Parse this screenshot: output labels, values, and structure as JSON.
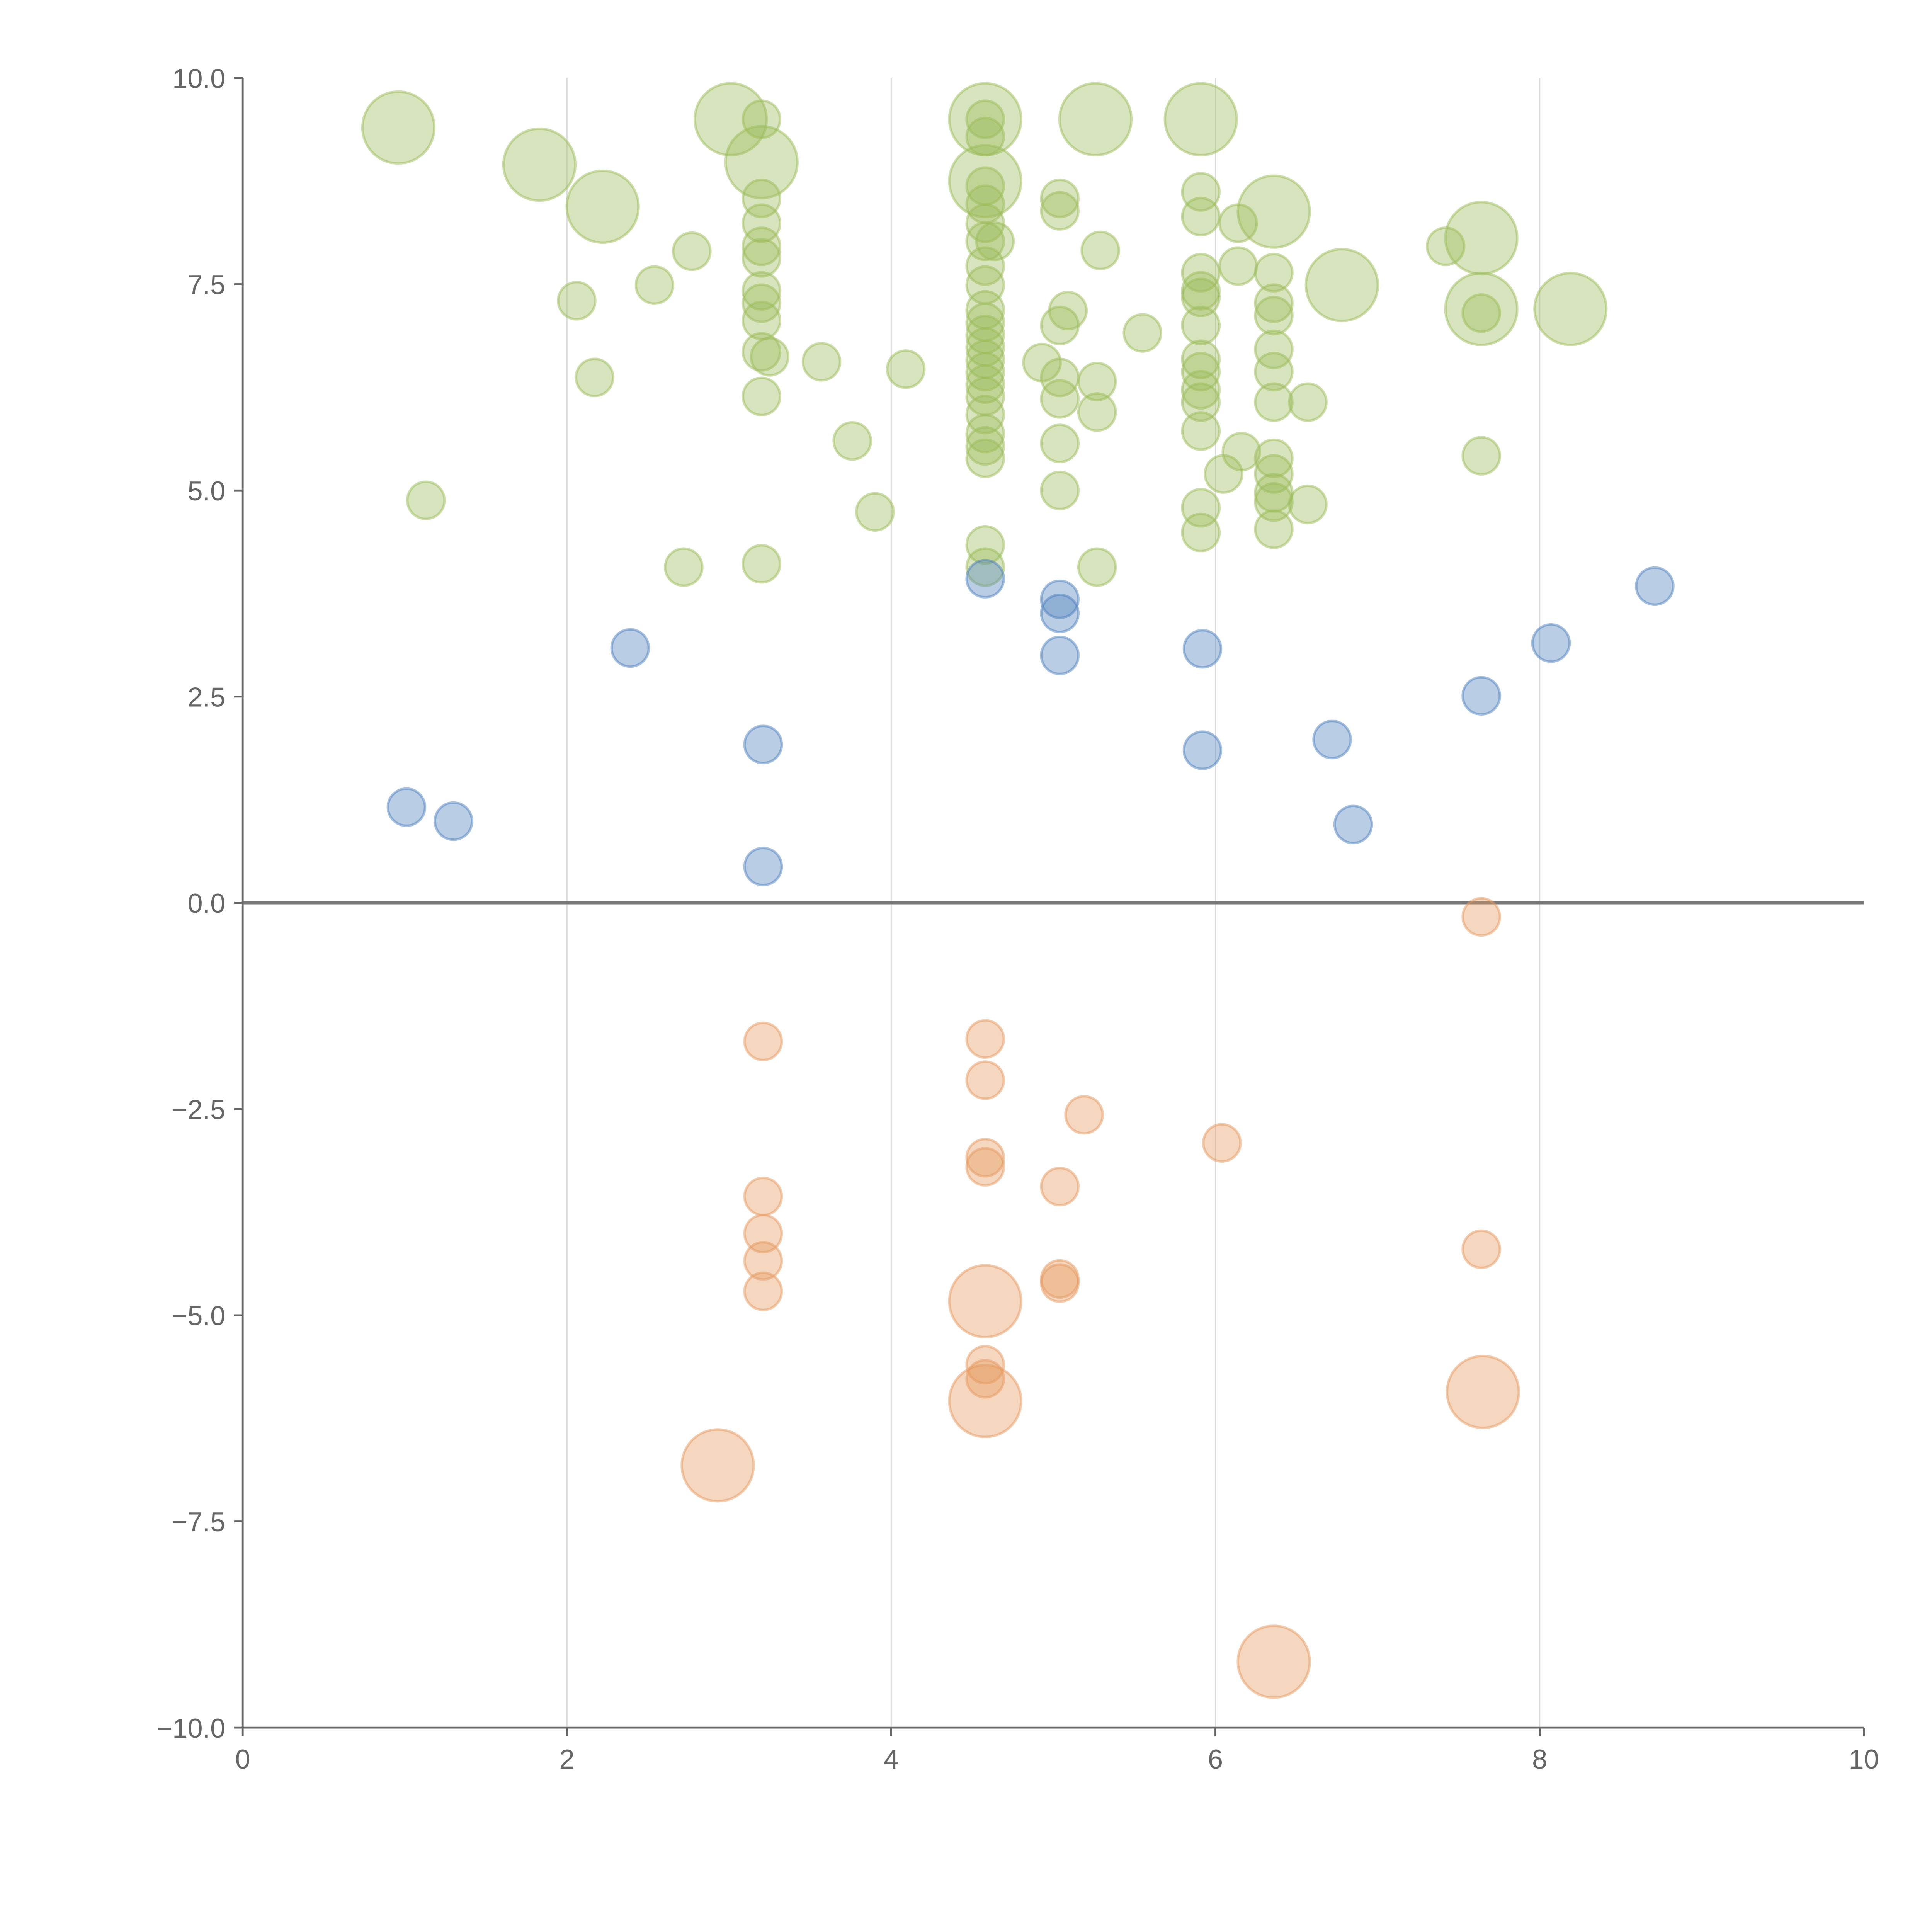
{
  "chart_data": {
    "type": "scatter",
    "title": "",
    "xlabel": "",
    "ylabel": "",
    "xlim": [
      0,
      10
    ],
    "ylim": [
      -10,
      10
    ],
    "grid": "vertical",
    "x_ticks": [
      "0",
      "2",
      "4",
      "6",
      "8",
      "10"
    ],
    "y_ticks": [
      "−10.0",
      "−7.5",
      "−5.0",
      "−2.5",
      "0.0",
      "2.5",
      "5.0",
      "7.5",
      "10.0"
    ],
    "point_format": "[x, y, size]",
    "series": [
      {
        "name": "green",
        "color": "#9bbb59",
        "points": [
          [
            0.96,
            9.4,
            4
          ],
          [
            1.83,
            8.95,
            4
          ],
          [
            2.22,
            8.44,
            4
          ],
          [
            3.01,
            9.5,
            4
          ],
          [
            3.2,
            8.98,
            4
          ],
          [
            4.58,
            9.5,
            4
          ],
          [
            4.58,
            8.75,
            4
          ],
          [
            5.26,
            9.5,
            4
          ],
          [
            5.91,
            9.5,
            4
          ],
          [
            6.36,
            8.38,
            4
          ],
          [
            6.78,
            7.49,
            4
          ],
          [
            7.64,
            8.06,
            4
          ],
          [
            7.64,
            7.2,
            4
          ],
          [
            8.19,
            7.2,
            4
          ],
          [
            3.2,
            9.5,
            1
          ],
          [
            3.2,
            8.54,
            1
          ],
          [
            3.2,
            8.24,
            1
          ],
          [
            3.2,
            7.96,
            1
          ],
          [
            3.2,
            7.82,
            1
          ],
          [
            3.2,
            7.42,
            1
          ],
          [
            3.2,
            7.27,
            1
          ],
          [
            3.2,
            7.06,
            1
          ],
          [
            3.2,
            6.68,
            1
          ],
          [
            3.2,
            6.14,
            1
          ],
          [
            3.2,
            4.11,
            1
          ],
          [
            3.25,
            6.62,
            1
          ],
          [
            1.13,
            4.88,
            1
          ],
          [
            2.06,
            7.3,
            1
          ],
          [
            2.17,
            6.37,
            1
          ],
          [
            2.54,
            7.49,
            1
          ],
          [
            2.77,
            7.9,
            1
          ],
          [
            2.72,
            4.07,
            1
          ],
          [
            3.57,
            6.56,
            1
          ],
          [
            3.76,
            5.6,
            1
          ],
          [
            3.9,
            4.74,
            1
          ],
          [
            4.09,
            6.47,
            1
          ],
          [
            4.58,
            9.5,
            1
          ],
          [
            4.58,
            9.29,
            1
          ],
          [
            4.58,
            8.69,
            1
          ],
          [
            4.58,
            8.47,
            1
          ],
          [
            4.58,
            8.24,
            1
          ],
          [
            4.58,
            8.02,
            1
          ],
          [
            4.58,
            7.72,
            1
          ],
          [
            4.58,
            7.49,
            1
          ],
          [
            4.58,
            7.19,
            1
          ],
          [
            4.58,
            7.04,
            1
          ],
          [
            4.58,
            6.89,
            1
          ],
          [
            4.58,
            6.74,
            1
          ],
          [
            4.58,
            6.59,
            1
          ],
          [
            4.58,
            6.44,
            1
          ],
          [
            4.58,
            6.29,
            1
          ],
          [
            4.58,
            6.14,
            1
          ],
          [
            4.58,
            5.92,
            1
          ],
          [
            4.58,
            5.69,
            1
          ],
          [
            4.58,
            5.54,
            1
          ],
          [
            4.58,
            5.39,
            1
          ],
          [
            4.58,
            4.34,
            1
          ],
          [
            4.58,
            4.07,
            1
          ],
          [
            4.64,
            8.02,
            1
          ],
          [
            5.04,
            8.54,
            1
          ],
          [
            5.04,
            8.39,
            1
          ],
          [
            5.29,
            7.91,
            1
          ],
          [
            5.09,
            7.18,
            1
          ],
          [
            5.04,
            7.0,
            1
          ],
          [
            4.93,
            6.55,
            1
          ],
          [
            5.04,
            6.37,
            1
          ],
          [
            5.04,
            6.11,
            1
          ],
          [
            5.27,
            6.32,
            1
          ],
          [
            5.27,
            5.95,
            1
          ],
          [
            5.04,
            5.57,
            1
          ],
          [
            5.04,
            5.0,
            1
          ],
          [
            5.27,
            4.07,
            1
          ],
          [
            5.55,
            6.91,
            1
          ],
          [
            5.91,
            8.62,
            1
          ],
          [
            5.91,
            8.32,
            1
          ],
          [
            5.91,
            7.64,
            1
          ],
          [
            5.91,
            7.42,
            1
          ],
          [
            5.91,
            7.34,
            1
          ],
          [
            5.91,
            7.0,
            1
          ],
          [
            5.91,
            6.59,
            1
          ],
          [
            5.91,
            6.44,
            1
          ],
          [
            5.91,
            6.22,
            1
          ],
          [
            5.91,
            6.07,
            1
          ],
          [
            5.91,
            5.72,
            1
          ],
          [
            5.91,
            4.79,
            1
          ],
          [
            5.91,
            4.49,
            1
          ],
          [
            6.14,
            8.24,
            1
          ],
          [
            6.14,
            7.72,
            1
          ],
          [
            6.05,
            5.2,
            1
          ],
          [
            6.16,
            5.47,
            1
          ],
          [
            6.36,
            7.64,
            1
          ],
          [
            6.36,
            7.27,
            1
          ],
          [
            6.36,
            7.12,
            1
          ],
          [
            6.36,
            6.71,
            1
          ],
          [
            6.36,
            6.44,
            1
          ],
          [
            6.36,
            6.07,
            1
          ],
          [
            6.36,
            5.39,
            1
          ],
          [
            6.36,
            5.2,
            1
          ],
          [
            6.36,
            4.97,
            1
          ],
          [
            6.36,
            4.86,
            1
          ],
          [
            6.36,
            4.53,
            1
          ],
          [
            6.57,
            6.07,
            1
          ],
          [
            6.57,
            4.83,
            1
          ],
          [
            7.42,
            7.96,
            1
          ],
          [
            7.64,
            5.42,
            1
          ],
          [
            7.64,
            7.15,
            1
          ]
        ]
      },
      {
        "name": "blue",
        "color": "#4f81bd",
        "points": [
          [
            1.01,
            1.16,
            1
          ],
          [
            1.3,
            0.99,
            1
          ],
          [
            2.39,
            3.09,
            1
          ],
          [
            3.21,
            1.92,
            1
          ],
          [
            3.21,
            0.44,
            1
          ],
          [
            4.58,
            3.93,
            1
          ],
          [
            5.04,
            3.68,
            1
          ],
          [
            5.04,
            3.51,
            1
          ],
          [
            5.04,
            3.0,
            1
          ],
          [
            5.92,
            3.08,
            1
          ],
          [
            5.92,
            1.85,
            1
          ],
          [
            6.72,
            1.98,
            1
          ],
          [
            6.85,
            0.95,
            1
          ],
          [
            7.64,
            2.51,
            1
          ],
          [
            8.07,
            3.15,
            1
          ],
          [
            8.71,
            3.84,
            1
          ]
        ]
      },
      {
        "name": "orange",
        "color": "#e59a5f",
        "points": [
          [
            7.64,
            -0.17,
            1
          ],
          [
            3.21,
            -1.68,
            1
          ],
          [
            4.58,
            -1.65,
            1
          ],
          [
            4.58,
            -2.15,
            1
          ],
          [
            5.19,
            -2.57,
            1
          ],
          [
            4.58,
            -3.09,
            1
          ],
          [
            4.58,
            -3.2,
            1
          ],
          [
            5.04,
            -3.44,
            1
          ],
          [
            6.04,
            -2.91,
            1
          ],
          [
            3.21,
            -3.56,
            1
          ],
          [
            3.21,
            -4.01,
            1
          ],
          [
            3.21,
            -4.34,
            1
          ],
          [
            3.21,
            -4.71,
            1
          ],
          [
            5.04,
            -4.56,
            1
          ],
          [
            5.04,
            -4.61,
            1
          ],
          [
            7.64,
            -4.2,
            1
          ],
          [
            4.58,
            -5.6,
            1
          ],
          [
            4.58,
            -5.77,
            1
          ],
          [
            4.58,
            -4.83,
            4
          ],
          [
            4.58,
            -6.04,
            4
          ],
          [
            2.93,
            -6.82,
            4
          ],
          [
            7.65,
            -5.93,
            4
          ],
          [
            6.36,
            -9.2,
            4
          ]
        ]
      }
    ]
  }
}
